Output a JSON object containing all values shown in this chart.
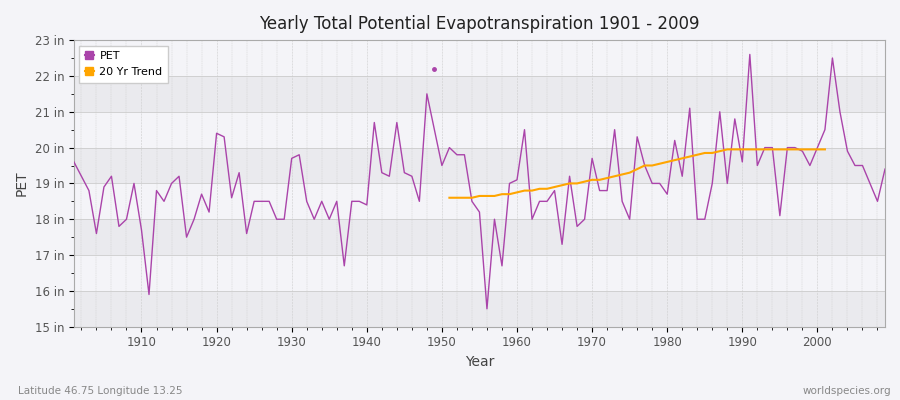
{
  "title": "Yearly Total Potential Evapotranspiration 1901 - 2009",
  "xlabel": "Year",
  "ylabel": "PET",
  "bottom_left": "Latitude 46.75 Longitude 13.25",
  "bottom_right": "worldspecies.org",
  "pet_color": "#AA44AA",
  "trend_color": "#FFA500",
  "bg_color": "#F4F4F8",
  "plot_bg_color": "#F4F4F8",
  "grid_color": "#CCCCCC",
  "ylim": [
    15,
    23
  ],
  "yticks": [
    15,
    16,
    17,
    18,
    19,
    20,
    21,
    22,
    23
  ],
  "ytick_labels": [
    "15 in",
    "16 in",
    "17 in",
    "18 in",
    "19 in",
    "20 in",
    "21 in",
    "22 in",
    "23 in"
  ],
  "years": [
    1901,
    1902,
    1903,
    1904,
    1905,
    1906,
    1907,
    1908,
    1909,
    1910,
    1911,
    1912,
    1913,
    1914,
    1915,
    1916,
    1917,
    1918,
    1919,
    1920,
    1921,
    1922,
    1923,
    1924,
    1925,
    1926,
    1927,
    1928,
    1929,
    1930,
    1931,
    1932,
    1933,
    1934,
    1935,
    1936,
    1937,
    1938,
    1939,
    1940,
    1941,
    1942,
    1943,
    1944,
    1945,
    1946,
    1947,
    1948,
    1950,
    1951,
    1952,
    1953,
    1954,
    1955,
    1956,
    1957,
    1958,
    1959,
    1960,
    1961,
    1962,
    1963,
    1964,
    1965,
    1966,
    1967,
    1968,
    1969,
    1970,
    1971,
    1972,
    1973,
    1974,
    1975,
    1976,
    1977,
    1978,
    1979,
    1980,
    1981,
    1982,
    1983,
    1984,
    1985,
    1986,
    1987,
    1988,
    1989,
    1990,
    1991,
    1992,
    1993,
    1994,
    1995,
    1996,
    1997,
    1998,
    1999,
    2000,
    2001,
    2002,
    2003,
    2004,
    2005,
    2006,
    2007,
    2008,
    2009
  ],
  "pet_values": [
    19.6,
    19.2,
    18.8,
    17.6,
    18.9,
    19.2,
    17.8,
    18.0,
    19.0,
    17.7,
    15.9,
    18.8,
    18.5,
    19.0,
    19.2,
    17.5,
    18.0,
    18.7,
    18.2,
    20.4,
    20.3,
    18.6,
    19.3,
    17.6,
    18.5,
    18.5,
    18.5,
    18.0,
    18.0,
    19.7,
    19.8,
    18.5,
    18.0,
    18.5,
    18.0,
    18.5,
    16.7,
    18.5,
    18.5,
    18.4,
    20.7,
    19.3,
    19.2,
    20.7,
    19.3,
    19.2,
    18.5,
    21.5,
    19.5,
    20.0,
    19.8,
    19.8,
    18.5,
    18.2,
    15.5,
    18.0,
    16.7,
    19.0,
    19.1,
    20.5,
    18.0,
    18.5,
    18.5,
    18.8,
    17.3,
    19.2,
    17.8,
    18.0,
    19.7,
    18.8,
    18.8,
    20.5,
    18.5,
    18.0,
    20.3,
    19.5,
    19.0,
    19.0,
    18.7,
    20.2,
    19.2,
    21.1,
    18.0,
    18.0,
    19.0,
    21.0,
    19.0,
    20.8,
    19.6,
    22.6,
    19.5,
    20.0,
    20.0,
    18.1,
    20.0,
    20.0,
    19.9,
    19.5,
    20.0,
    20.5,
    22.5,
    21.0,
    19.9,
    19.5,
    19.5,
    19.0,
    18.5,
    19.4
  ],
  "outlier_year": 1949,
  "outlier_value": 22.2,
  "trend_values_years": [
    1951,
    1952,
    1953,
    1954,
    1955,
    1956,
    1957,
    1958,
    1959,
    1960,
    1961,
    1962,
    1963,
    1964,
    1965,
    1966,
    1967,
    1968,
    1969,
    1970,
    1971,
    1972,
    1973,
    1974,
    1975,
    1976,
    1977,
    1978,
    1979,
    1980,
    1981,
    1982,
    1983,
    1984,
    1985,
    1986,
    1987,
    1988,
    1989,
    1990,
    1991,
    1992,
    1993,
    1994,
    1995,
    1996,
    1997,
    1998,
    1999,
    2000,
    2001
  ],
  "trend_values": [
    18.6,
    18.6,
    18.6,
    18.6,
    18.65,
    18.65,
    18.65,
    18.7,
    18.7,
    18.75,
    18.8,
    18.8,
    18.85,
    18.85,
    18.9,
    18.95,
    19.0,
    19.0,
    19.05,
    19.1,
    19.1,
    19.15,
    19.2,
    19.25,
    19.3,
    19.4,
    19.5,
    19.5,
    19.55,
    19.6,
    19.65,
    19.7,
    19.75,
    19.8,
    19.85,
    19.85,
    19.9,
    19.95,
    19.95,
    19.95,
    19.95,
    19.95,
    19.95,
    19.95,
    19.95,
    19.95,
    19.95,
    19.95,
    19.95,
    19.95,
    19.95
  ]
}
